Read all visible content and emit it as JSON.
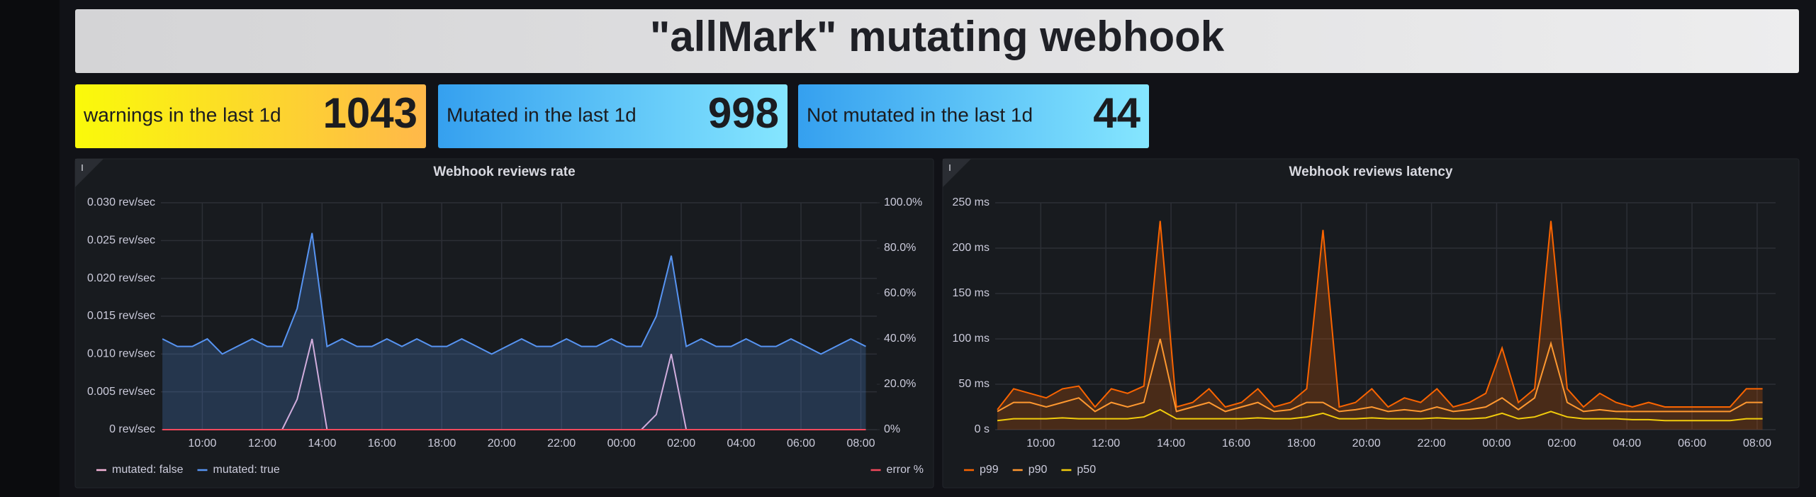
{
  "header": {
    "title": "\"allMark\" mutating webhook"
  },
  "stats": [
    {
      "label": "warnings in the last 1d",
      "value": 1043
    },
    {
      "label": "Mutated in the last 1d",
      "value": 998
    },
    {
      "label": "Not mutated in the last 1d",
      "value": 44
    }
  ],
  "chart_data": [
    {
      "type": "line",
      "title": "Webhook reviews rate",
      "legend": "bottom",
      "grid": true,
      "x": [
        "08:40",
        "09:10",
        "09:40",
        "10:10",
        "10:40",
        "11:10",
        "11:40",
        "12:10",
        "12:40",
        "13:10",
        "13:40",
        "14:10",
        "14:40",
        "15:10",
        "15:40",
        "16:10",
        "16:40",
        "17:10",
        "17:40",
        "18:10",
        "18:40",
        "19:10",
        "19:40",
        "20:10",
        "20:40",
        "21:10",
        "21:40",
        "22:10",
        "22:40",
        "23:10",
        "23:40",
        "00:10",
        "00:40",
        "01:10",
        "01:40",
        "02:10",
        "02:40",
        "03:10",
        "03:40",
        "04:10",
        "04:40",
        "05:10",
        "05:40",
        "06:10",
        "06:40",
        "07:10",
        "07:40",
        "08:10"
      ],
      "xlim": [
        "08:37",
        "08:32"
      ],
      "xticks": [
        "10:00",
        "12:00",
        "14:00",
        "16:00",
        "18:00",
        "20:00",
        "22:00",
        "00:00",
        "02:00",
        "04:00",
        "06:00",
        "08:00"
      ],
      "ylim": [
        0,
        0.03
      ],
      "yticks": [
        {
          "value": 0,
          "label": "0 rev/sec"
        },
        {
          "value": 0.005,
          "label": "0.005 rev/sec"
        },
        {
          "value": 0.01,
          "label": "0.010 rev/sec"
        },
        {
          "value": 0.015,
          "label": "0.015 rev/sec"
        },
        {
          "value": 0.02,
          "label": "0.020 rev/sec"
        },
        {
          "value": 0.025,
          "label": "0.025 rev/sec"
        },
        {
          "value": 0.03,
          "label": "0.030 rev/sec"
        }
      ],
      "y2lim": [
        0,
        100
      ],
      "y2ticks": [
        {
          "value": 0,
          "label": "0%"
        },
        {
          "value": 20,
          "label": "20.0%"
        },
        {
          "value": 40,
          "label": "40.0%"
        },
        {
          "value": 60,
          "label": "60.0%"
        },
        {
          "value": 80,
          "label": "80.0%"
        },
        {
          "value": 100,
          "label": "100.0%"
        }
      ],
      "series": [
        {
          "name": "mutated: false",
          "color": "#f4b4d8",
          "fill": false,
          "values": [
            0,
            0,
            0,
            0,
            0,
            0,
            0,
            0,
            0,
            0.004,
            0.012,
            0,
            0,
            0,
            0,
            0,
            0,
            0,
            0,
            0,
            0,
            0,
            0,
            0,
            0,
            0,
            0,
            0,
            0,
            0,
            0,
            0,
            0,
            0.002,
            0.01,
            0,
            0,
            0,
            0,
            0,
            0,
            0,
            0,
            0,
            0,
            0,
            0,
            0
          ]
        },
        {
          "name": "mutated: true",
          "color": "#5794f2",
          "fill": true,
          "values": [
            0.012,
            0.011,
            0.011,
            0.012,
            0.01,
            0.011,
            0.012,
            0.011,
            0.011,
            0.016,
            0.026,
            0.011,
            0.012,
            0.011,
            0.011,
            0.012,
            0.011,
            0.012,
            0.011,
            0.011,
            0.012,
            0.011,
            0.01,
            0.011,
            0.012,
            0.011,
            0.011,
            0.012,
            0.011,
            0.011,
            0.012,
            0.011,
            0.011,
            0.015,
            0.023,
            0.011,
            0.012,
            0.011,
            0.011,
            0.012,
            0.011,
            0.011,
            0.012,
            0.011,
            0.01,
            0.011,
            0.012,
            0.011
          ]
        },
        {
          "name": "error %",
          "color": "#f2495c",
          "fill": false,
          "axis": "y2",
          "values": [
            0,
            0,
            0,
            0,
            0,
            0,
            0,
            0,
            0,
            0,
            0,
            0,
            0,
            0,
            0,
            0,
            0,
            0,
            0,
            0,
            0,
            0,
            0,
            0,
            0,
            0,
            0,
            0,
            0,
            0,
            0,
            0,
            0,
            0,
            0,
            0,
            0,
            0,
            0,
            0,
            0,
            0,
            0,
            0,
            0,
            0,
            0,
            0
          ]
        }
      ]
    },
    {
      "type": "line",
      "title": "Webhook reviews latency",
      "legend": "bottom",
      "grid": true,
      "x": [
        "08:40",
        "09:10",
        "09:40",
        "10:10",
        "10:40",
        "11:10",
        "11:40",
        "12:10",
        "12:40",
        "13:10",
        "13:40",
        "14:10",
        "14:40",
        "15:10",
        "15:40",
        "16:10",
        "16:40",
        "17:10",
        "17:40",
        "18:10",
        "18:40",
        "19:10",
        "19:40",
        "20:10",
        "20:40",
        "21:10",
        "21:40",
        "22:10",
        "22:40",
        "23:10",
        "23:40",
        "00:10",
        "00:40",
        "01:10",
        "01:40",
        "02:10",
        "02:40",
        "03:10",
        "03:40",
        "04:10",
        "04:40",
        "05:10",
        "05:40",
        "06:10",
        "06:40",
        "07:10",
        "07:40",
        "08:10"
      ],
      "xlim": [
        "08:36",
        "08:34"
      ],
      "xticks": [
        "10:00",
        "12:00",
        "14:00",
        "16:00",
        "18:00",
        "20:00",
        "22:00",
        "00:00",
        "02:00",
        "04:00",
        "06:00",
        "08:00"
      ],
      "ylim": [
        0,
        250
      ],
      "yticks": [
        {
          "value": 0,
          "label": "0 s"
        },
        {
          "value": 50,
          "label": "50 ms"
        },
        {
          "value": 100,
          "label": "100 ms"
        },
        {
          "value": 150,
          "label": "150 ms"
        },
        {
          "value": 200,
          "label": "200 ms"
        },
        {
          "value": 250,
          "label": "250 ms"
        }
      ],
      "series": [
        {
          "name": "p99",
          "color": "#fa6400",
          "fill": true,
          "values": [
            22,
            45,
            40,
            35,
            45,
            48,
            25,
            45,
            40,
            48,
            230,
            25,
            30,
            45,
            25,
            30,
            45,
            25,
            30,
            45,
            220,
            25,
            30,
            45,
            25,
            35,
            30,
            45,
            25,
            30,
            40,
            90,
            30,
            45,
            230,
            45,
            25,
            40,
            30,
            25,
            30,
            25,
            25,
            25,
            25,
            25,
            45,
            45
          ]
        },
        {
          "name": "p90",
          "color": "#ff9830",
          "fill": false,
          "values": [
            20,
            30,
            30,
            25,
            30,
            35,
            20,
            30,
            25,
            30,
            100,
            20,
            25,
            30,
            20,
            25,
            30,
            20,
            22,
            30,
            30,
            20,
            22,
            25,
            20,
            22,
            20,
            25,
            20,
            22,
            25,
            35,
            22,
            35,
            95,
            30,
            20,
            22,
            20,
            20,
            20,
            20,
            20,
            20,
            20,
            20,
            30,
            30
          ]
        },
        {
          "name": "p50",
          "color": "#f2cc0c",
          "fill": false,
          "values": [
            10,
            12,
            12,
            12,
            13,
            12,
            12,
            12,
            12,
            14,
            22,
            12,
            12,
            12,
            12,
            12,
            13,
            12,
            12,
            14,
            18,
            12,
            12,
            13,
            12,
            12,
            12,
            13,
            12,
            12,
            13,
            18,
            12,
            14,
            20,
            14,
            12,
            12,
            12,
            11,
            11,
            10,
            10,
            10,
            10,
            10,
            12,
            12
          ]
        }
      ]
    }
  ]
}
